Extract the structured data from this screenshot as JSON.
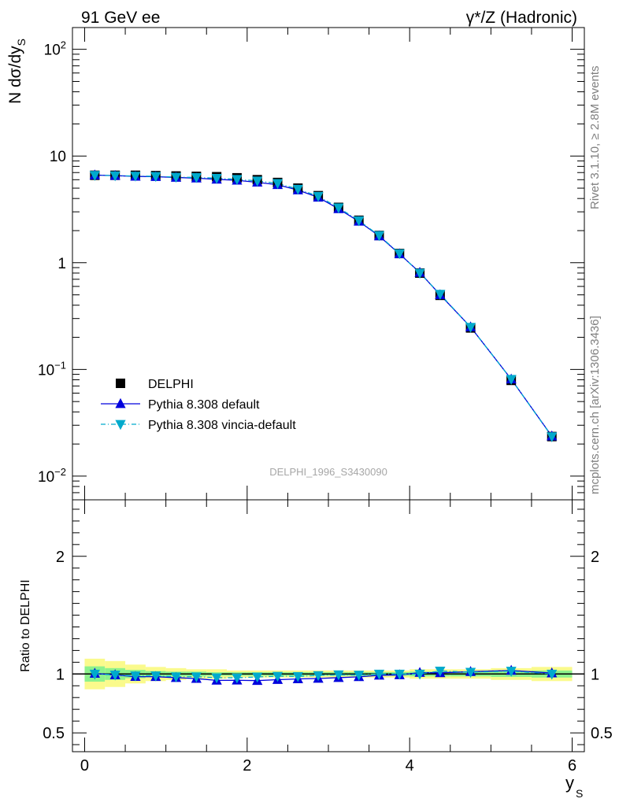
{
  "header": {
    "left": "91 GeV ee",
    "right": "γ*/Z (Hadronic)"
  },
  "side_labels": {
    "rivet": "Rivet 3.1.10, ≥ 2.8M events",
    "mcplots": "mcplots.cern.ch [arXiv:1306.3436]"
  },
  "watermark": "DELPHI_1996_S3430090",
  "colors": {
    "data": "#000000",
    "default": "#0000dd",
    "vincia": "#00aacc",
    "band_inner": "#8cf28c",
    "band_outer": "#fafa8c"
  },
  "chart_data": [
    {
      "type": "line",
      "yscale": "log",
      "ylabel": "N dσ/dy_S",
      "ylim": [
        0.006,
        160
      ],
      "xlim": [
        -0.15,
        6.15
      ],
      "y_ticklabels": [
        "10^-2",
        "10^-1",
        "1",
        "10",
        "10^2"
      ],
      "legend_position": "lower-left",
      "x": [
        0.125,
        0.375,
        0.625,
        0.875,
        1.125,
        1.375,
        1.625,
        1.875,
        2.125,
        2.375,
        2.625,
        2.875,
        3.125,
        3.375,
        3.625,
        3.875,
        4.125,
        4.375,
        4.75,
        5.25,
        5.75
      ],
      "series": [
        {
          "name": "DELPHI",
          "marker": "square",
          "values": [
            6.6,
            6.6,
            6.6,
            6.55,
            6.5,
            6.45,
            6.4,
            6.25,
            6.0,
            5.65,
            5.0,
            4.25,
            3.3,
            2.5,
            1.8,
            1.22,
            0.8,
            0.495,
            0.245,
            0.079,
            0.0235
          ]
        },
        {
          "name": "Pythia 8.308 default",
          "marker": "triangle-up",
          "values": [
            6.63,
            6.55,
            6.45,
            6.4,
            6.3,
            6.2,
            6.05,
            5.92,
            5.67,
            5.38,
            4.8,
            4.1,
            3.2,
            2.44,
            1.78,
            1.21,
            0.81,
            0.5,
            0.25,
            0.081,
            0.0237
          ]
        },
        {
          "name": "Pythia 8.308 vincia-default",
          "marker": "triangle-down",
          "values": [
            6.6,
            6.55,
            6.5,
            6.45,
            6.35,
            6.3,
            6.2,
            6.05,
            5.85,
            5.55,
            4.9,
            4.2,
            3.28,
            2.48,
            1.8,
            1.22,
            0.8,
            0.508,
            0.249,
            0.081,
            0.0235
          ]
        }
      ]
    },
    {
      "type": "line",
      "ylabel": "Ratio to DELPHI",
      "xlabel": "y_S",
      "ylim": [
        0.34,
        2.48
      ],
      "xlim": [
        -0.15,
        6.15
      ],
      "y_ticklabels": [
        "0.5",
        "1",
        "2"
      ],
      "x_ticklabels": [
        "0",
        "2",
        "4",
        "6"
      ],
      "x": [
        0.125,
        0.375,
        0.625,
        0.875,
        1.125,
        1.375,
        1.625,
        1.875,
        2.125,
        2.375,
        2.625,
        2.875,
        3.125,
        3.375,
        3.625,
        3.875,
        4.125,
        4.375,
        4.75,
        5.25,
        5.75
      ],
      "x_edges": [
        0,
        0.25,
        0.5,
        0.75,
        1,
        1.25,
        1.5,
        1.75,
        2,
        2.25,
        2.5,
        2.75,
        3,
        3.25,
        3.5,
        3.75,
        4,
        4.25,
        4.5,
        5,
        5.5,
        6
      ],
      "band_stat_syst": [
        0.13,
        0.11,
        0.08,
        0.06,
        0.05,
        0.04,
        0.04,
        0.03,
        0.03,
        0.03,
        0.03,
        0.03,
        0.03,
        0.03,
        0.03,
        0.03,
        0.04,
        0.04,
        0.04,
        0.05,
        0.06
      ],
      "band_stat": [
        0.065,
        0.05,
        0.035,
        0.025,
        0.02,
        0.02,
        0.015,
        0.015,
        0.015,
        0.015,
        0.015,
        0.015,
        0.015,
        0.015,
        0.015,
        0.015,
        0.02,
        0.02,
        0.02,
        0.025,
        0.03
      ],
      "series": [
        {
          "name": "Pythia 8.308 default",
          "values": [
            1.005,
            0.992,
            0.978,
            0.977,
            0.969,
            0.961,
            0.946,
            0.947,
            0.944,
            0.952,
            0.958,
            0.962,
            0.969,
            0.976,
            0.989,
            0.992,
            1.012,
            1.01,
            1.02,
            1.03,
            1.008
          ]
        },
        {
          "name": "Pythia 8.308 vincia-default",
          "values": [
            1.0,
            0.993,
            0.985,
            0.985,
            0.977,
            0.977,
            0.969,
            0.968,
            0.975,
            0.982,
            0.98,
            0.988,
            0.994,
            0.992,
            1.0,
            1.0,
            1.0,
            1.026,
            1.016,
            1.025,
            1.0
          ]
        }
      ]
    }
  ]
}
